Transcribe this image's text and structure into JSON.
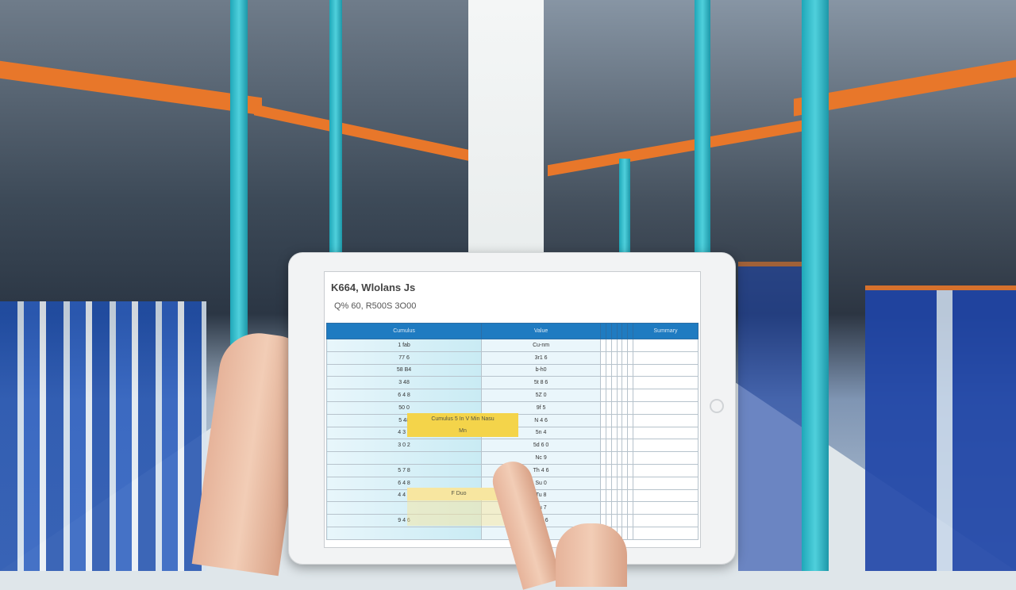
{
  "tablet": {
    "title": "K664, Wlolans Js",
    "subtitle": "Q% 60, R500S 3O00",
    "columns": [
      "Cumulus",
      "Value",
      "",
      "",
      "",
      "",
      "",
      "",
      "Summary"
    ],
    "rows": [
      [
        "1 fab",
        "Cu-nm"
      ],
      [
        "77 6",
        "3r1 6"
      ],
      [
        "58 B4",
        "b-h0"
      ],
      [
        "3 48",
        "5t 8 6"
      ],
      [
        "6 4 8",
        "5Z 0"
      ],
      [
        "50 0",
        "9f 5"
      ],
      [
        "5 48",
        "N 4 6"
      ],
      [
        "4 3 8",
        "5n 4"
      ],
      [
        "3 0 2",
        "5d 6 0"
      ],
      [
        "",
        "Nc 9"
      ],
      [
        "5 7 8",
        "Th 4 6"
      ],
      [
        "6 4 8",
        "Su 0"
      ],
      [
        "4 4 6",
        "Tu 8"
      ],
      [
        "",
        "Vu 7"
      ],
      [
        "9 4 6",
        "W 4 6"
      ],
      [
        "",
        ""
      ]
    ],
    "highlight1": "Cumulus 5 In V Min Nasu",
    "highlight1b": "Mn",
    "highlight2": "F Duo",
    "colors": {
      "header": "#1f7bc1",
      "highlight": "#f4d44a",
      "shelf_beam": "#e8772a",
      "shelf_post": "#1fa7b8"
    }
  }
}
